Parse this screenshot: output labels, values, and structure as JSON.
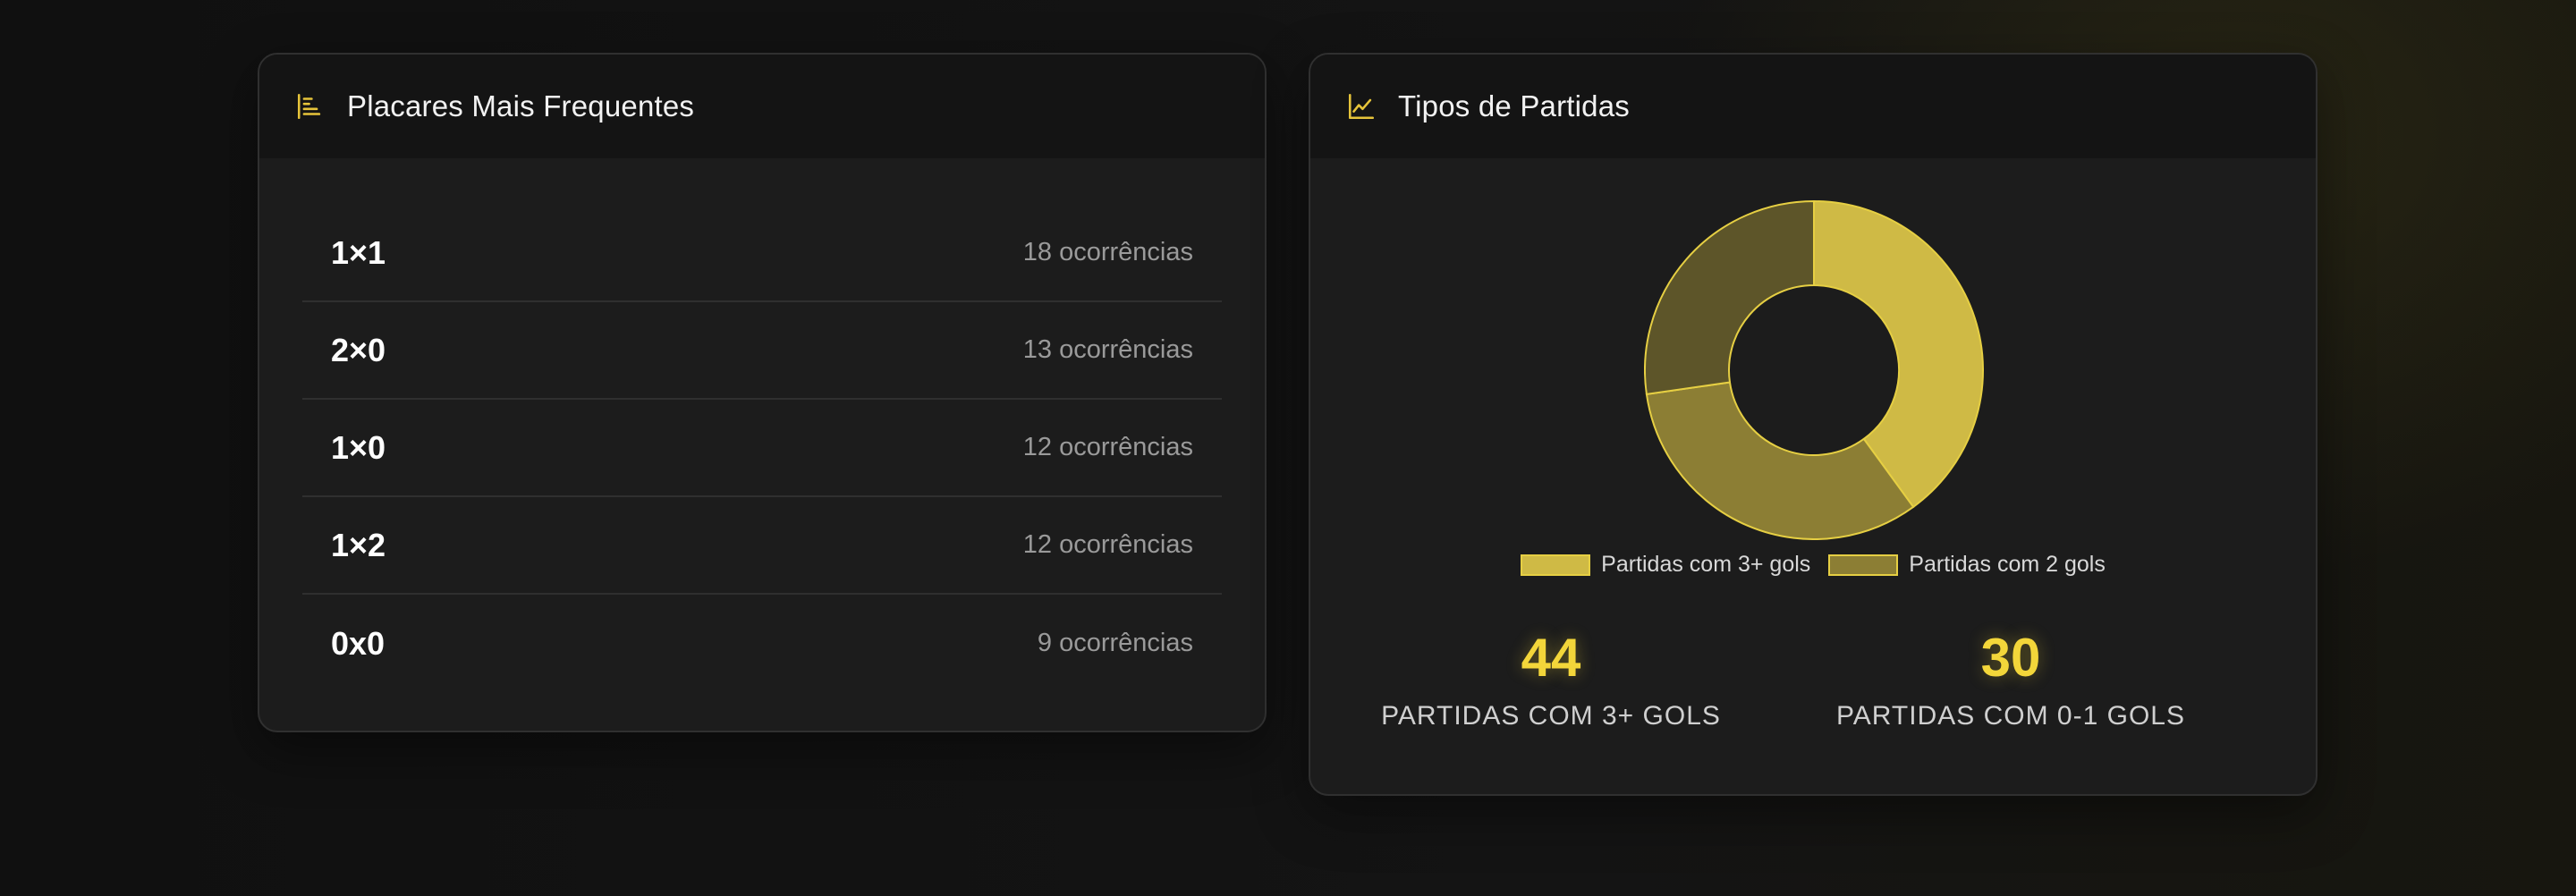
{
  "scores_card": {
    "title": "Placares Mais Frequentes",
    "icon": "bar-chart-horizontal-icon",
    "rows": [
      {
        "score": "1×1",
        "count": "18 ocorrências"
      },
      {
        "score": "2×0",
        "count": "13 ocorrências"
      },
      {
        "score": "1×0",
        "count": "12 ocorrências"
      },
      {
        "score": "1×2",
        "count": "12 ocorrências"
      },
      {
        "score": "0x0",
        "count": "9 ocorrências"
      }
    ]
  },
  "types_card": {
    "title": "Tipos de Partidas",
    "icon": "line-chart-icon",
    "stats": [
      {
        "value": "44",
        "label": "PARTIDAS COM 3+ GOLS"
      },
      {
        "value": "30",
        "label": "PARTIDAS COM 0-1 GOLS"
      }
    ]
  },
  "chart_data": {
    "type": "pie",
    "donut": true,
    "legend_position": "bottom",
    "series": [
      {
        "name": "Partidas com 3+ gols",
        "value": 44,
        "color": "#cfba45"
      },
      {
        "name": "Partidas com 2 gols",
        "value": 36,
        "color": "#8c7e34"
      },
      {
        "name": "",
        "value": 30,
        "color": "#5d5529"
      }
    ],
    "border_color": "#e6cf43"
  },
  "colors": {
    "accent": "#f3d63a",
    "card_bg": "#1c1c1c",
    "header_bg": "#141414"
  }
}
